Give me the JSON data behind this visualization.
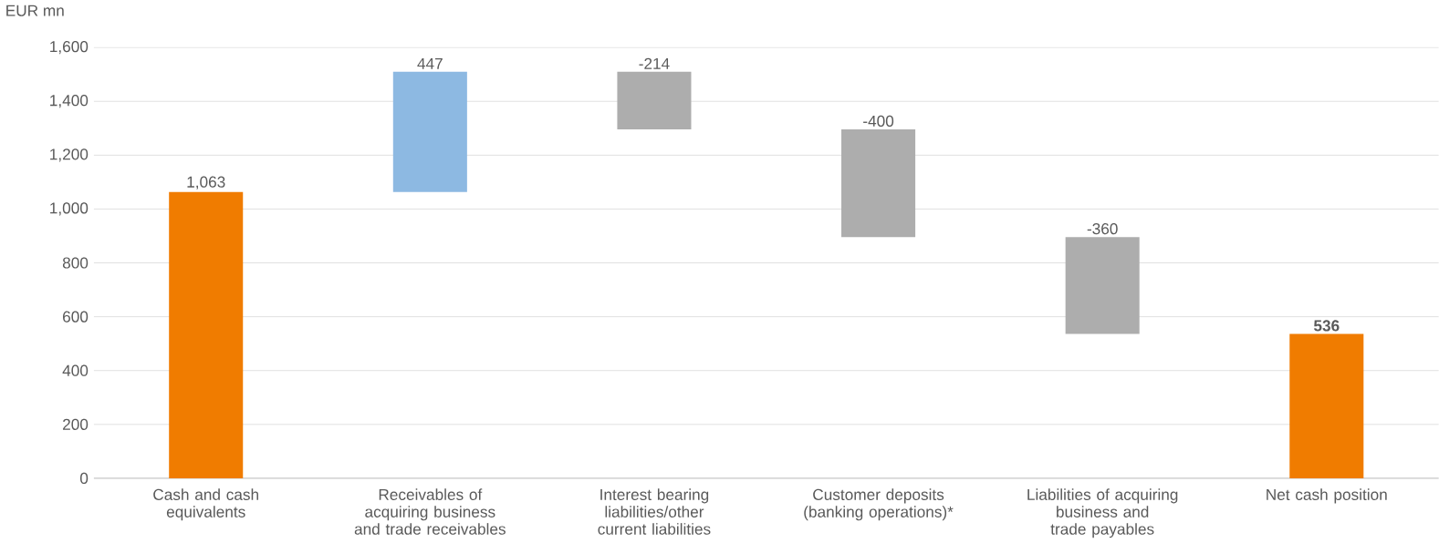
{
  "chart_data": {
    "type": "bar",
    "ylabel": "EUR mn",
    "categories": [
      "Cash and cash equivalents",
      "Receivables of acquiring business and trade receivables",
      "Interest bearing liabilities/other current liabilities",
      "Customer deposits (banking operations)*",
      "Liabilities of acquiring business and trade payables",
      "Net cash position"
    ],
    "values": [
      1063,
      447,
      -214,
      -400,
      -360,
      536
    ],
    "base": [
      0,
      1063,
      1510,
      1296,
      896,
      0
    ],
    "colors": [
      "#f07c00",
      "#8db9e2",
      "#adadad",
      "#adadad",
      "#adadad",
      "#f07c00"
    ],
    "value_labels": [
      "1,063",
      "447",
      "-214",
      "-400",
      "-360",
      "**536**"
    ],
    "ylim": [
      0,
      1600
    ],
    "yticks": [
      0,
      200,
      400,
      600,
      800,
      {
        "value": 1000,
        "label": "1,000"
      },
      {
        "value": 1200,
        "label": "1,200"
      },
      {
        "value": 1400,
        "label": "1,400"
      },
      {
        "value": 1600,
        "label": "1,600"
      }
    ],
    "grid": "y"
  }
}
